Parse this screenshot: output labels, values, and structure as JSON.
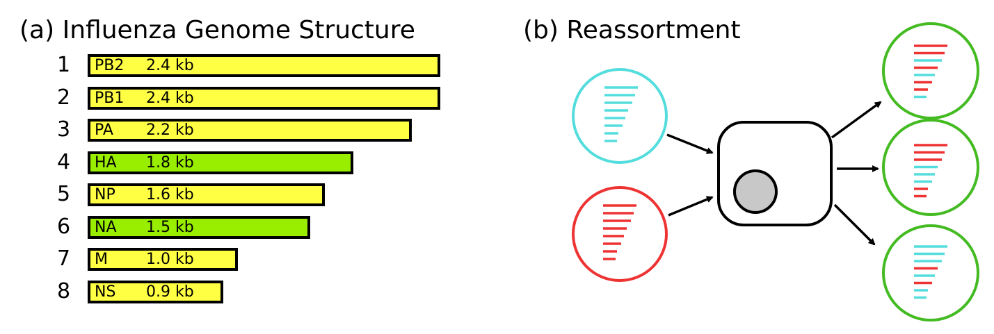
{
  "panel_a": {
    "title": "(a) Influenza Genome Structure",
    "segments": [
      {
        "number": "1",
        "name": "PB2",
        "size_label": "2.4 kb",
        "size_kb": 2.4,
        "color": "#ffff44"
      },
      {
        "number": "2",
        "name": "PB1",
        "size_label": "2.4 kb",
        "size_kb": 2.4,
        "color": "#ffff44"
      },
      {
        "number": "3",
        "name": "PA",
        "size_label": "2.2 kb",
        "size_kb": 2.2,
        "color": "#ffff44"
      },
      {
        "number": "4",
        "name": "HA",
        "size_label": "1.8 kb",
        "size_kb": 1.8,
        "color": "#99ee00"
      },
      {
        "number": "5",
        "name": "NP",
        "size_label": "1.6 kb",
        "size_kb": 1.6,
        "color": "#ffff44"
      },
      {
        "number": "6",
        "name": "NA",
        "size_label": "1.5 kb",
        "size_kb": 1.5,
        "color": "#99ee00"
      },
      {
        "number": "7",
        "name": "M",
        "size_label": "1.0 kb",
        "size_kb": 1.0,
        "color": "#ffff44"
      },
      {
        "number": "8",
        "name": "NS",
        "size_label": "0.9 kb",
        "size_kb": 0.9,
        "color": "#ffff44"
      }
    ]
  },
  "panel_b": {
    "title": "(b) Reassortment",
    "colors": {
      "strain_a": "#55dddd",
      "strain_b": "#ee3333",
      "progeny": "#44bb22",
      "cell_nucleus": "#c8c8c8"
    },
    "parent_virus_a": [
      "a",
      "a",
      "a",
      "a",
      "a",
      "a",
      "a",
      "a"
    ],
    "parent_virus_b": [
      "b",
      "b",
      "b",
      "b",
      "b",
      "b",
      "b",
      "b"
    ],
    "progeny": [
      [
        "b",
        "b",
        "a",
        "b",
        "a",
        "b",
        "b",
        "a"
      ],
      [
        "b",
        "b",
        "b",
        "a",
        "a",
        "a",
        "b",
        "b"
      ],
      [
        "a",
        "a",
        "a",
        "b",
        "a",
        "b",
        "a",
        "a"
      ]
    ]
  }
}
